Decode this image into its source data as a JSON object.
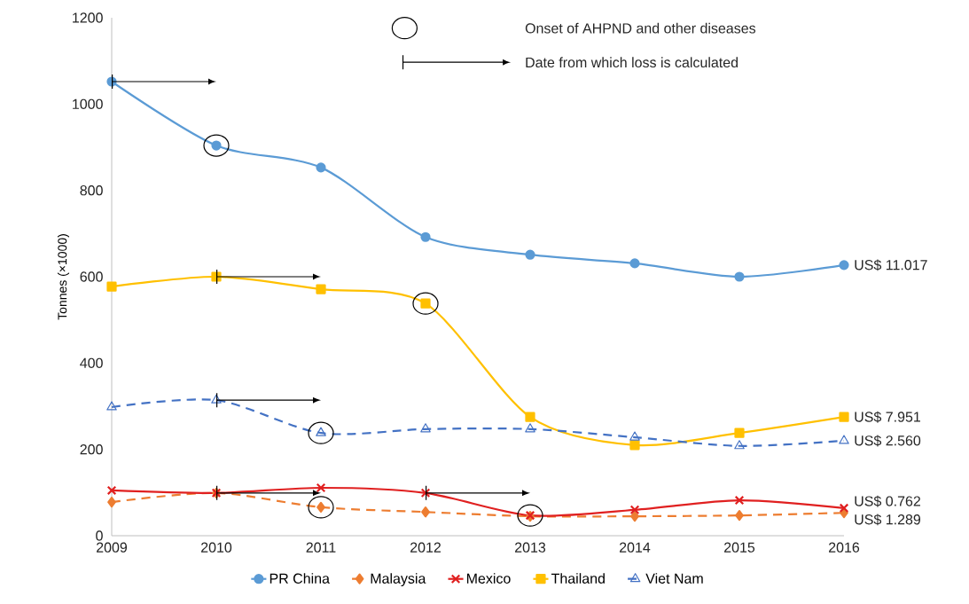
{
  "chart_data": {
    "type": "line",
    "ylabel": "Tonnes (×1000)",
    "categories": [
      "2009",
      "2010",
      "2011",
      "2012",
      "2013",
      "2014",
      "2015",
      "2016"
    ],
    "series": [
      {
        "name": "PR China",
        "color": "#5b9bd5",
        "marker": "circle",
        "line_style": "solid",
        "values": [
          1052,
          904,
          853,
          692,
          651,
          631,
          600,
          627
        ]
      },
      {
        "name": "Malaysia",
        "color": "#ed7d31",
        "marker": "diamond",
        "line_style": "dashed",
        "values": [
          78,
          99,
          66,
          55,
          45,
          45,
          47,
          53
        ]
      },
      {
        "name": "Mexico",
        "color": "#e02020",
        "marker": "cross",
        "line_style": "solid",
        "values": [
          105,
          99,
          111,
          99,
          47,
          60,
          82,
          64
        ]
      },
      {
        "name": "Thailand",
        "color": "#ffc000",
        "marker": "square",
        "line_style": "solid",
        "values": [
          577,
          600,
          571,
          538,
          275,
          210,
          238,
          275
        ]
      },
      {
        "name": "Viet Nam",
        "color": "#4472c4",
        "marker": "triangle",
        "line_style": "dashed",
        "values": [
          298,
          314,
          238,
          247,
          247,
          228,
          208,
          220
        ]
      }
    ],
    "ylim": [
      0,
      1200
    ],
    "yticks": [
      0,
      200,
      400,
      600,
      800,
      1000,
      1200
    ],
    "legend": "bottom",
    "annotations": [
      "Onset of AHPND and other diseases",
      "Date from which loss is calculated",
      {
        "text": "US$ 11.017",
        "x": "2016",
        "y": 627
      },
      {
        "text": "US$ 7.951",
        "x": "2016",
        "y": 275
      },
      {
        "text": "US$ 2.560",
        "x": "2016",
        "y": 220
      },
      {
        "text": "US$ 0.762",
        "x": "2016",
        "y": 64
      },
      {
        "text": "US$ 1.289",
        "x": "2016",
        "y": 53
      }
    ]
  }
}
